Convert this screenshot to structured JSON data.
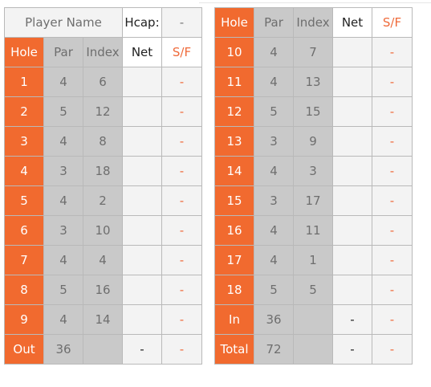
{
  "header": {
    "player_name_label": "Player Name",
    "hcap_label": "Hcap:",
    "hcap_value": "-"
  },
  "columns": {
    "hole": "Hole",
    "par": "Par",
    "index": "Index",
    "net": "Net",
    "sf": "S/F"
  },
  "front_nine": [
    {
      "hole": "1",
      "par": "4",
      "index": "6",
      "net": "",
      "sf": "-"
    },
    {
      "hole": "2",
      "par": "5",
      "index": "12",
      "net": "",
      "sf": "-"
    },
    {
      "hole": "3",
      "par": "4",
      "index": "8",
      "net": "",
      "sf": "-"
    },
    {
      "hole": "4",
      "par": "3",
      "index": "18",
      "net": "",
      "sf": "-"
    },
    {
      "hole": "5",
      "par": "4",
      "index": "2",
      "net": "",
      "sf": "-"
    },
    {
      "hole": "6",
      "par": "3",
      "index": "10",
      "net": "",
      "sf": "-"
    },
    {
      "hole": "7",
      "par": "4",
      "index": "4",
      "net": "",
      "sf": "-"
    },
    {
      "hole": "8",
      "par": "5",
      "index": "16",
      "net": "",
      "sf": "-"
    },
    {
      "hole": "9",
      "par": "4",
      "index": "14",
      "net": "",
      "sf": "-"
    }
  ],
  "out_row": {
    "hole": "Out",
    "par": "36",
    "index": "",
    "net": "-",
    "sf": "-"
  },
  "back_nine": [
    {
      "hole": "10",
      "par": "4",
      "index": "7",
      "net": "",
      "sf": "-"
    },
    {
      "hole": "11",
      "par": "4",
      "index": "13",
      "net": "",
      "sf": "-"
    },
    {
      "hole": "12",
      "par": "5",
      "index": "15",
      "net": "",
      "sf": "-"
    },
    {
      "hole": "13",
      "par": "3",
      "index": "9",
      "net": "",
      "sf": "-"
    },
    {
      "hole": "14",
      "par": "4",
      "index": "3",
      "net": "",
      "sf": "-"
    },
    {
      "hole": "15",
      "par": "3",
      "index": "17",
      "net": "",
      "sf": "-"
    },
    {
      "hole": "16",
      "par": "4",
      "index": "11",
      "net": "",
      "sf": "-"
    },
    {
      "hole": "17",
      "par": "4",
      "index": "1",
      "net": "",
      "sf": "-"
    },
    {
      "hole": "18",
      "par": "5",
      "index": "5",
      "net": "",
      "sf": "-"
    }
  ],
  "in_row": {
    "hole": "In",
    "par": "36",
    "index": "",
    "net": "-",
    "sf": "-"
  },
  "total_row": {
    "hole": "Total",
    "par": "72",
    "index": "",
    "net": "-",
    "sf": "-"
  },
  "colors": {
    "hole_orange": "#f16a2f",
    "shaded_grey": "#c9c9c9",
    "light_grey": "#f3f3f3",
    "sf_orange": "#ef6a3a"
  }
}
